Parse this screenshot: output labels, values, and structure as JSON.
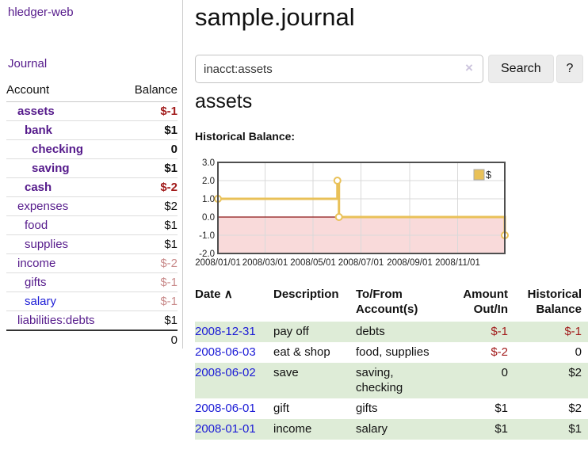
{
  "app": {
    "brand": "hledger-web"
  },
  "sidebar": {
    "journal_link": "Journal",
    "accounts": {
      "header_account": "Account",
      "header_balance": "Balance",
      "rows": [
        {
          "name": "assets",
          "balance": "$-1",
          "depth": 1,
          "bold": true,
          "balance_style": "neg-strong",
          "link_style": "visited"
        },
        {
          "name": "bank",
          "balance": "$1",
          "depth": 2,
          "bold": true,
          "balance_style": "",
          "link_style": "visited"
        },
        {
          "name": "checking",
          "balance": "0",
          "depth": 3,
          "bold": true,
          "balance_style": "",
          "link_style": "visited"
        },
        {
          "name": "saving",
          "balance": "$1",
          "depth": 3,
          "bold": true,
          "balance_style": "",
          "link_style": "visited"
        },
        {
          "name": "cash",
          "balance": "$-2",
          "depth": 2,
          "bold": true,
          "balance_style": "neg-strong",
          "link_style": "visited"
        },
        {
          "name": "expenses",
          "balance": "$2",
          "depth": 1,
          "bold": false,
          "balance_style": "",
          "link_style": "visited"
        },
        {
          "name": "food",
          "balance": "$1",
          "depth": 2,
          "bold": false,
          "balance_style": "",
          "link_style": "visited"
        },
        {
          "name": "supplies",
          "balance": "$1",
          "depth": 2,
          "bold": false,
          "balance_style": "",
          "link_style": "visited"
        },
        {
          "name": "income",
          "balance": "$-2",
          "depth": 1,
          "bold": false,
          "balance_style": "neg-faded",
          "link_style": "visited"
        },
        {
          "name": "gifts",
          "balance": "$-1",
          "depth": 2,
          "bold": false,
          "balance_style": "neg-faded",
          "link_style": "visited"
        },
        {
          "name": "salary",
          "balance": "$-1",
          "depth": 2,
          "bold": false,
          "balance_style": "neg-faded",
          "link_style": "unvisited"
        },
        {
          "name": "liabilities:debts",
          "balance": "$1",
          "depth": 1,
          "bold": false,
          "balance_style": "",
          "link_style": "visited"
        }
      ],
      "total": "0"
    }
  },
  "main": {
    "title": "sample.journal",
    "search": {
      "value": "inacct:assets",
      "clear_icon": "×",
      "search_button": "Search",
      "help_button": "?"
    },
    "account_heading": "assets",
    "section_label": "Historical Balance:"
  },
  "chart_data": {
    "type": "line",
    "title": "Historical Balance",
    "step": true,
    "series": [
      {
        "name": "$",
        "points": [
          {
            "date": "2008-01-01",
            "value": 1
          },
          {
            "date": "2008-06-01",
            "value": 2
          },
          {
            "date": "2008-06-03",
            "value": 0
          },
          {
            "date": "2008-12-31",
            "value": -1
          }
        ]
      }
    ],
    "x_range": [
      "2008-01-01",
      "2008-12-31"
    ],
    "ylim": [
      -2,
      3
    ],
    "y_ticks": [
      "3.0",
      "2.0",
      "1.0",
      "0.0",
      "-1.0",
      "-2.0"
    ],
    "x_ticks": [
      {
        "label": "2008/01/01",
        "date": "2008-01-01"
      },
      {
        "label": "2008/03/01",
        "date": "2008-03-01"
      },
      {
        "label": "2008/05/01",
        "date": "2008-05-01"
      },
      {
        "label": "2008/07/01",
        "date": "2008-07-01"
      },
      {
        "label": "2008/09/01",
        "date": "2008-09-01"
      },
      {
        "label": "2008/11/01",
        "date": "2008-11-01"
      }
    ],
    "legend": {
      "label": "$",
      "position": "top-right"
    },
    "grid": true,
    "negative_region_shaded": true
  },
  "register": {
    "headers": {
      "date": "Date",
      "sort_indicator": "∧",
      "description": "Description",
      "accounts": "To/From Account(s)",
      "amount": "Amount Out/In",
      "balance": "Historical Balance"
    },
    "rows": [
      {
        "date": "2008-12-31",
        "description": "pay off",
        "accounts": "debts",
        "amount": "$-1",
        "amount_style": "neg-strong",
        "balance": "$-1",
        "balance_style": "neg-strong",
        "shaded": true
      },
      {
        "date": "2008-06-03",
        "description": "eat & shop",
        "accounts": "food, supplies",
        "amount": "$-2",
        "amount_style": "neg-strong",
        "balance": "0",
        "balance_style": "",
        "shaded": false
      },
      {
        "date": "2008-06-02",
        "description": "save",
        "accounts": "saving, checking",
        "amount": "0",
        "amount_style": "",
        "balance": "$2",
        "balance_style": "",
        "shaded": true
      },
      {
        "date": "2008-06-01",
        "description": "gift",
        "accounts": "gifts",
        "amount": "$1",
        "amount_style": "",
        "balance": "$2",
        "balance_style": "",
        "shaded": false
      },
      {
        "date": "2008-01-01",
        "description": "income",
        "accounts": "salary",
        "amount": "$1",
        "amount_style": "",
        "balance": "$1",
        "balance_style": "",
        "shaded": true
      }
    ]
  },
  "colors": {
    "link_visited": "#551a8b",
    "link_unvisited": "#1c1cd6",
    "negative_strong": "#a21c1c",
    "negative_faded": "#c98b8b",
    "row_shade_green": "#deecd7",
    "chart_line_gold": "#e9c158",
    "chart_negative_fill": "#f9dada",
    "chart_zero_line": "#8c1616",
    "chart_border": "#4f4f4f",
    "chart_grid": "#d9d9d9",
    "button_bg": "#ececec",
    "divider": "#cccccc"
  }
}
